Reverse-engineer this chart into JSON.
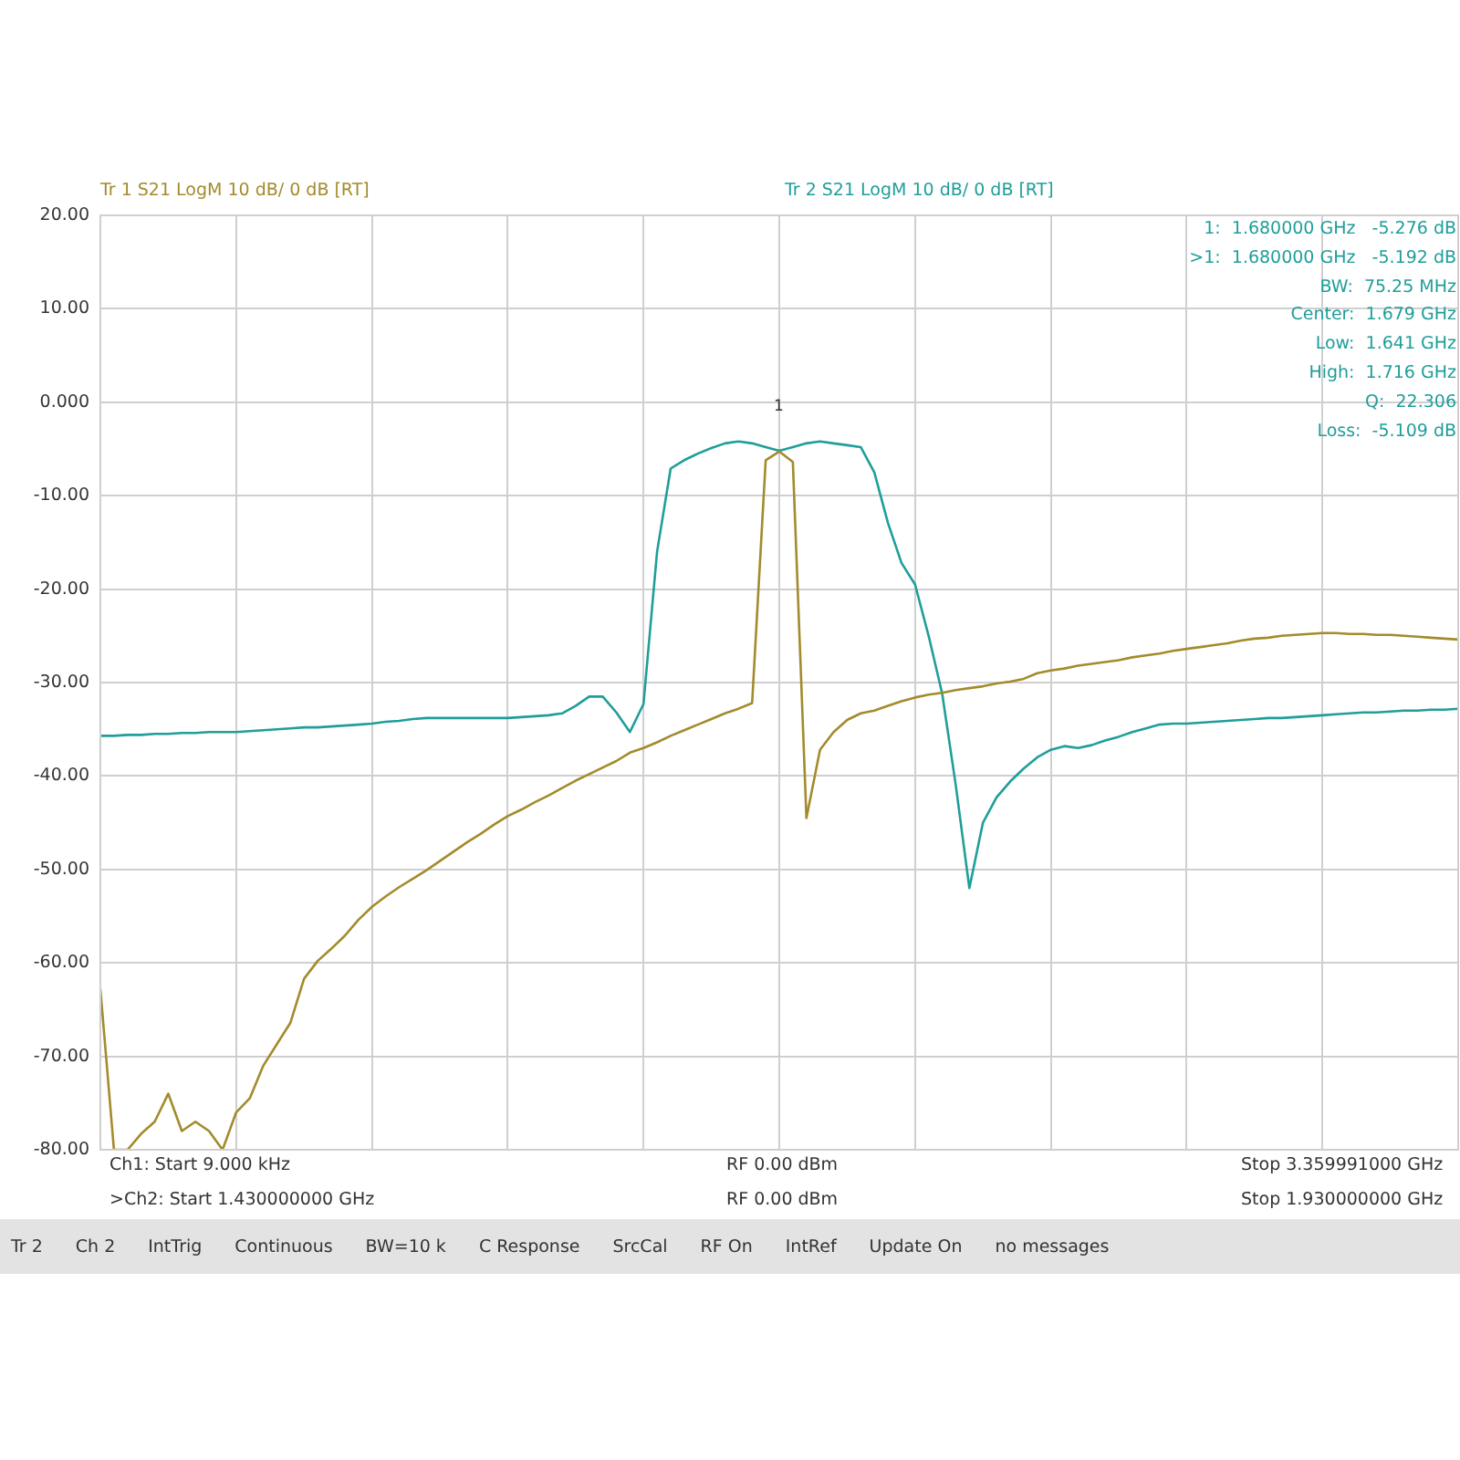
{
  "chart_data": {
    "type": "line",
    "grid": true,
    "tick_labels": "y",
    "line_style": "solid",
    "ylim": [
      -80,
      20
    ],
    "yticks": [
      {
        "value": 20,
        "label": "20.00"
      },
      {
        "value": 10,
        "label": "10.00"
      },
      {
        "value": 0,
        "label": "0.000"
      },
      {
        "value": -10,
        "label": "-10.00"
      },
      {
        "value": -20,
        "label": "-20.00"
      },
      {
        "value": -30,
        "label": "-30.00"
      },
      {
        "value": -40,
        "label": "-40.00"
      },
      {
        "value": -50,
        "label": "-50.00"
      },
      {
        "value": -60,
        "label": "-60.00"
      },
      {
        "value": -70,
        "label": "-70.00"
      },
      {
        "value": -80,
        "label": "-80.00"
      }
    ],
    "categories": [
      null,
      null,
      null,
      null,
      null,
      null,
      null,
      null,
      null,
      null,
      null,
      null,
      null,
      null,
      null,
      null,
      null,
      null,
      null,
      null,
      null,
      null,
      null,
      null,
      null,
      null,
      null,
      null,
      null,
      null,
      null,
      null,
      null,
      null,
      null,
      null,
      null,
      null,
      null,
      null,
      null,
      null,
      null,
      null,
      null,
      null,
      null,
      null,
      null,
      null,
      null,
      null,
      null,
      null,
      null,
      null,
      null,
      null,
      null,
      null,
      null,
      null,
      null,
      null,
      null,
      null,
      null,
      null,
      null,
      null,
      null,
      null,
      null,
      null,
      null,
      null,
      null,
      null,
      null,
      null,
      null,
      null,
      null,
      null,
      null,
      null,
      null,
      null,
      null,
      null,
      null,
      null,
      null,
      null,
      null,
      null,
      null,
      null,
      null,
      null,
      null
    ],
    "series": [
      {
        "name": "Tr 1  S21 LogM 10 dB/ 0 dB [RT]",
        "color": "#a38b2c",
        "values": [
          -62.8,
          -80,
          -80,
          -78.3,
          -77,
          -74,
          -78,
          -77,
          -78,
          -80,
          -76,
          -74.5,
          -71,
          -68.7,
          -66.4,
          -61.7,
          -59.8,
          -58.5,
          -57.1,
          -55.4,
          -54,
          -52.9,
          -51.9,
          -51.0,
          -50.1,
          -49.1,
          -48.1,
          -47.1,
          -46.2,
          -45.2,
          -44.3,
          -43.6,
          -42.8,
          -42.1,
          -41.3,
          -40.5,
          -39.8,
          -39.1,
          -38.4,
          -37.5,
          -37.0,
          -36.4,
          -35.7,
          -35.1,
          -34.5,
          -33.9,
          -33.3,
          -32.8,
          -32.2,
          -6.2,
          -5.276,
          -6.4,
          -44.5,
          -37.2,
          -35.3,
          -34.0,
          -33.3,
          -33.0,
          -32.5,
          -32.0,
          -31.6,
          -31.3,
          -31.1,
          -30.8,
          -30.6,
          -30.4,
          -30.1,
          -29.9,
          -29.6,
          -29.0,
          -28.7,
          -28.5,
          -28.2,
          -28.0,
          -27.8,
          -27.6,
          -27.3,
          -27.1,
          -26.9,
          -26.6,
          -26.4,
          -26.2,
          -26.0,
          -25.8,
          -25.5,
          -25.3,
          -25.2,
          -25.0,
          -24.9,
          -24.8,
          -24.7,
          -24.7,
          -24.8,
          -24.8,
          -24.9,
          -24.9,
          -25.0,
          -25.1,
          -25.2,
          -25.3,
          -25.4
        ]
      },
      {
        "name": "Tr 2  S21 LogM 10 dB/ 0 dB [RT]",
        "color": "#1f9e9a",
        "values": [
          -35.7,
          -35.7,
          -35.6,
          -35.6,
          -35.5,
          -35.5,
          -35.4,
          -35.4,
          -35.3,
          -35.3,
          -35.3,
          -35.2,
          -35.1,
          -35.0,
          -34.9,
          -34.8,
          -34.8,
          -34.7,
          -34.6,
          -34.5,
          -34.4,
          -34.2,
          -34.1,
          -33.9,
          -33.8,
          -33.8,
          -33.8,
          -33.8,
          -33.8,
          -33.8,
          -33.8,
          -33.7,
          -33.6,
          -33.5,
          -33.3,
          -32.5,
          -31.5,
          -31.5,
          -33.2,
          -35.3,
          -32.3,
          -16,
          -7.1,
          -6.2,
          -5.5,
          -4.9,
          -4.4,
          -4.2,
          -4.4,
          -4.8,
          -5.192,
          -4.8,
          -4.4,
          -4.2,
          -4.4,
          -4.6,
          -4.8,
          -7.5,
          -12.9,
          -17.2,
          -19.5,
          -25,
          -31.2,
          -41,
          -52,
          -45,
          -42.3,
          -40.6,
          -39.2,
          -38,
          -37.2,
          -36.8,
          -37,
          -36.7,
          -36.2,
          -35.8,
          -35.3,
          -34.9,
          -34.5,
          -34.4,
          -34.4,
          -34.3,
          -34.2,
          -34.1,
          -34.0,
          -33.9,
          -33.8,
          -33.8,
          -33.7,
          -33.6,
          -33.5,
          -33.4,
          -33.3,
          -33.2,
          -33.2,
          -33.1,
          -33.0,
          -33.0,
          -32.9,
          -32.9,
          -32.8
        ]
      }
    ],
    "annotations": [
      "1",
      "1:  1.680000 GHz   -5.276 dB",
      ">1:  1.680000 GHz   -5.192 dB",
      "BW:  75.25 MHz",
      "Center:  1.679 GHz",
      "Low:  1.641 GHz",
      "High:  1.716 GHz",
      "Q:  22.306",
      "Loss:  -5.109 dB",
      "Ch1: Start 9.000 kHz",
      "RF 0.00 dBm",
      "Stop 3.359991000 GHz",
      ">Ch2: Start 1.430000000 GHz",
      "RF 0.00 dBm",
      "Stop 1.930000000 GHz",
      "Tr 2",
      "Ch 2",
      "IntTrig",
      "Continuous",
      "BW=10 k",
      "C Response",
      "SrcCal",
      "RF On",
      "IntRef",
      "Update On",
      "no messages"
    ]
  }
}
